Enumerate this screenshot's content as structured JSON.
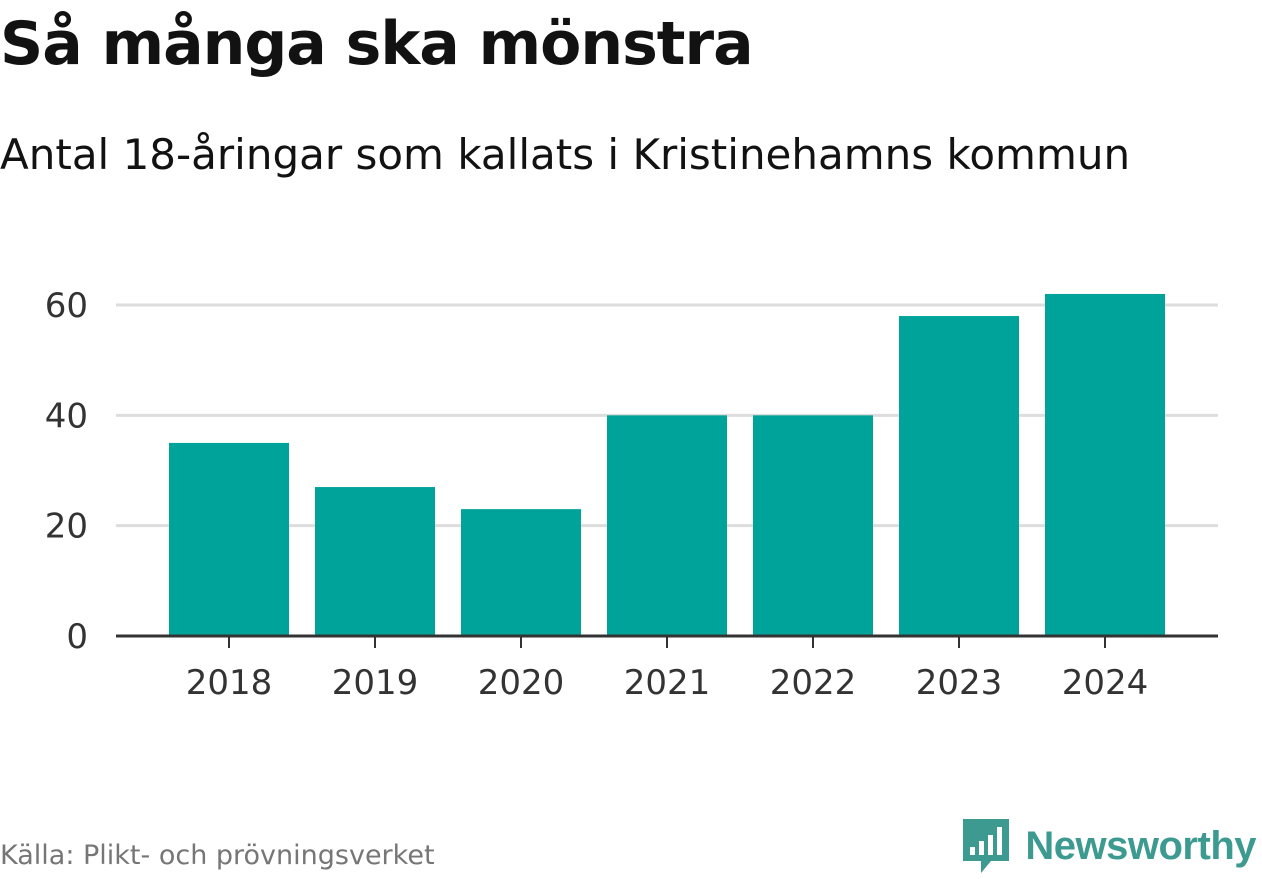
{
  "header": {
    "title": "Så många ska mönstra",
    "subtitle": "Antal 18-åringar som kallats i Kristinehamns kommun"
  },
  "footer": {
    "source": "Källa: Plikt- och prövningsverket",
    "brand": "Newsworthy",
    "brand_icon": "bar-chart-speech-bubble-icon"
  },
  "colors": {
    "bar": "#00a39a",
    "grid": "#dddddd",
    "axis": "#333333",
    "brand": "#3d9a91"
  },
  "chart_data": {
    "type": "bar",
    "title": "Så många ska mönstra",
    "subtitle": "Antal 18-åringar som kallats i Kristinehamns kommun",
    "xlabel": "",
    "ylabel": "",
    "categories": [
      "2018",
      "2019",
      "2020",
      "2021",
      "2022",
      "2023",
      "2024"
    ],
    "values": [
      35,
      27,
      23,
      40,
      40,
      58,
      62
    ],
    "ylim": [
      0,
      60
    ],
    "yticks": [
      0,
      20,
      40,
      60
    ],
    "grid": true,
    "legend": "none"
  }
}
